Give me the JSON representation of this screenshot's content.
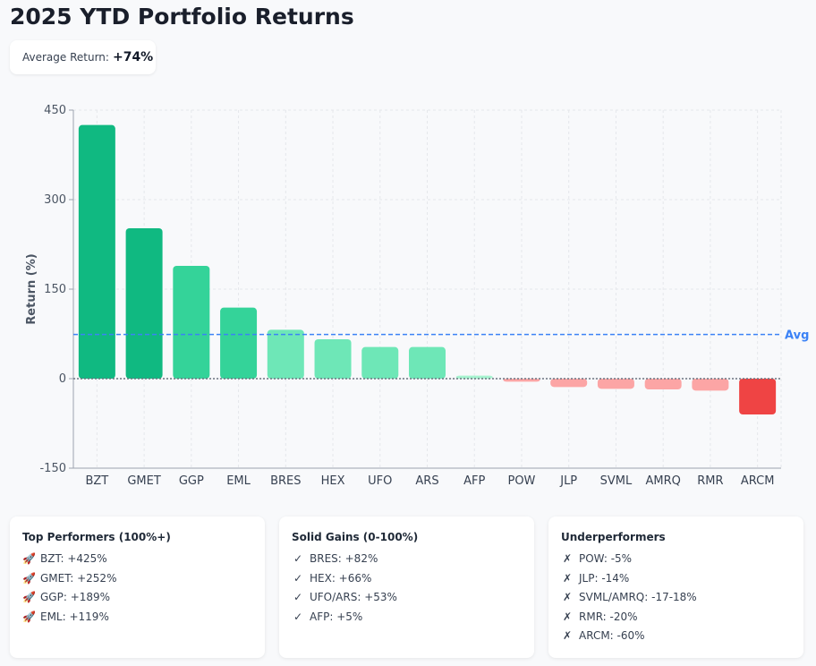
{
  "page": {
    "title": "2025 YTD Portfolio Returns",
    "average_label": "Average Return:",
    "average_value": "+74%"
  },
  "chart_data": {
    "type": "bar",
    "ylabel": "Return (%)",
    "xlabel": "",
    "ylim": [
      -150,
      450
    ],
    "yticks": [
      -150,
      0,
      150,
      300,
      450
    ],
    "grid": true,
    "categories": [
      "BZT",
      "GMET",
      "GGP",
      "EML",
      "BRES",
      "HEX",
      "UFO",
      "ARS",
      "AFP",
      "POW",
      "JLP",
      "SVML",
      "AMRQ",
      "RMR",
      "ARCM"
    ],
    "values": [
      425,
      252,
      189,
      119,
      82,
      66,
      53,
      53,
      5,
      -5,
      -14,
      -17,
      -18,
      -20,
      -60
    ],
    "colors": [
      "#10b981",
      "#10b981",
      "#34d399",
      "#34d399",
      "#6ee7b7",
      "#6ee7b7",
      "#6ee7b7",
      "#6ee7b7",
      "#a7f3d0",
      "#fca5a5",
      "#fca5a5",
      "#fca5a5",
      "#fca5a5",
      "#fca5a5",
      "#ef4444"
    ],
    "reference_line": {
      "value": 74,
      "label": "Avg",
      "color": "#3b82f6"
    },
    "zero_line_color": "#6b7280"
  },
  "cards": [
    {
      "title": "Top Performers (100%+)",
      "marker": "rocket-icon",
      "items": [
        "BZT: +425%",
        "GMET: +252%",
        "GGP: +189%",
        "EML: +119%"
      ]
    },
    {
      "title": "Solid Gains (0-100%)",
      "marker": "check-icon",
      "items": [
        "BRES: +82%",
        "HEX: +66%",
        "UFO/ARS: +53%",
        "AFP: +5%"
      ]
    },
    {
      "title": "Underperformers",
      "marker": "cross-icon",
      "items": [
        "POW: -5%",
        "JLP: -14%",
        "SVML/AMRQ: -17-18%",
        "RMR: -20%",
        "ARCM: -60%"
      ]
    }
  ]
}
